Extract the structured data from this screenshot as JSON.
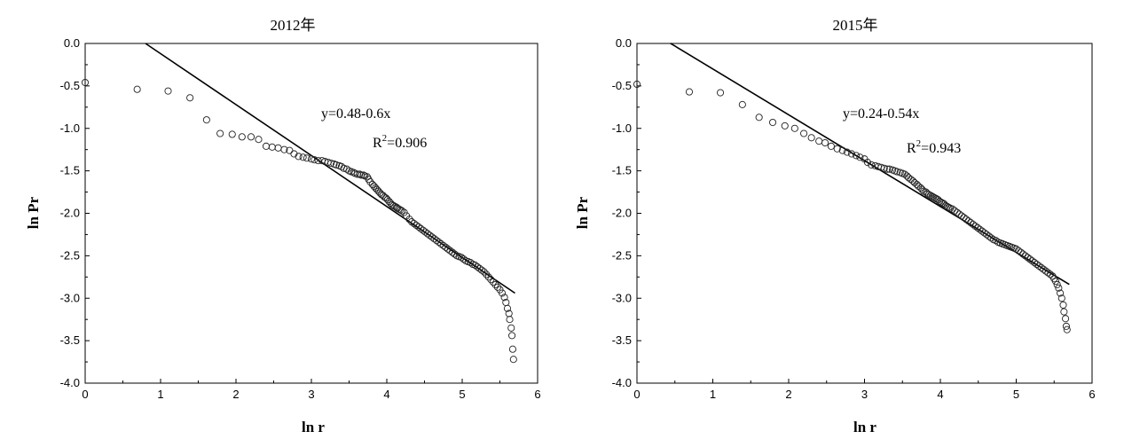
{
  "chart_data": [
    {
      "type": "scatter",
      "title": "2012年",
      "xlabel": "ln r",
      "ylabel": "ln Pr",
      "xlim": [
        0,
        6
      ],
      "ylim": [
        -4.0,
        0.0
      ],
      "xticks": [
        "0",
        "1",
        "2",
        "3",
        "4",
        "5",
        "6"
      ],
      "yticks": [
        "0.0",
        "-0.5",
        "-1.0",
        "-1.5",
        "-2.0",
        "-2.5",
        "-3.0",
        "-3.5",
        "-4.0"
      ],
      "annotation": {
        "equation": "y=0.48-0.6x",
        "r2_prefix": "R",
        "r2_sup": "2",
        "r2_value": "=0.906"
      },
      "fit": {
        "intercept": 0.48,
        "slope": -0.6,
        "x_range": [
          0.8,
          5.7
        ]
      },
      "points": [
        [
          0,
          -0.46
        ],
        [
          0.69,
          -0.54
        ],
        [
          1.1,
          -0.56
        ],
        [
          1.39,
          -0.64
        ],
        [
          1.61,
          -0.9
        ],
        [
          1.79,
          -1.06
        ],
        [
          1.95,
          -1.07
        ],
        [
          2.08,
          -1.1
        ],
        [
          2.2,
          -1.1
        ],
        [
          2.3,
          -1.13
        ],
        [
          2.4,
          -1.21
        ],
        [
          2.48,
          -1.22
        ],
        [
          2.56,
          -1.23
        ],
        [
          2.64,
          -1.25
        ],
        [
          2.71,
          -1.26
        ],
        [
          2.77,
          -1.3
        ],
        [
          2.83,
          -1.33
        ],
        [
          2.89,
          -1.34
        ],
        [
          2.94,
          -1.35
        ],
        [
          3.0,
          -1.36
        ],
        [
          3.04,
          -1.37
        ],
        [
          3.09,
          -1.38
        ],
        [
          3.14,
          -1.38
        ],
        [
          3.18,
          -1.39
        ],
        [
          3.22,
          -1.4
        ],
        [
          3.26,
          -1.41
        ],
        [
          3.3,
          -1.42
        ],
        [
          3.33,
          -1.43
        ],
        [
          3.37,
          -1.44
        ],
        [
          3.4,
          -1.45
        ],
        [
          3.43,
          -1.47
        ],
        [
          3.47,
          -1.48
        ],
        [
          3.5,
          -1.5
        ],
        [
          3.53,
          -1.51
        ],
        [
          3.56,
          -1.52
        ],
        [
          3.58,
          -1.53
        ],
        [
          3.61,
          -1.54
        ],
        [
          3.64,
          -1.54
        ],
        [
          3.66,
          -1.55
        ],
        [
          3.69,
          -1.55
        ],
        [
          3.71,
          -1.56
        ],
        [
          3.74,
          -1.57
        ],
        [
          3.76,
          -1.6
        ],
        [
          3.78,
          -1.63
        ],
        [
          3.81,
          -1.66
        ],
        [
          3.83,
          -1.68
        ],
        [
          3.85,
          -1.7
        ],
        [
          3.87,
          -1.72
        ],
        [
          3.89,
          -1.74
        ],
        [
          3.91,
          -1.76
        ],
        [
          3.93,
          -1.78
        ],
        [
          3.95,
          -1.79
        ],
        [
          3.97,
          -1.81
        ],
        [
          3.99,
          -1.82
        ],
        [
          4.01,
          -1.84
        ],
        [
          4.03,
          -1.86
        ],
        [
          4.05,
          -1.88
        ],
        [
          4.07,
          -1.9
        ],
        [
          4.09,
          -1.91
        ],
        [
          4.11,
          -1.92
        ],
        [
          4.13,
          -1.93
        ],
        [
          4.14,
          -1.94
        ],
        [
          4.16,
          -1.95
        ],
        [
          4.18,
          -1.96
        ],
        [
          4.2,
          -1.97
        ],
        [
          4.23,
          -1.99
        ],
        [
          4.26,
          -2.03
        ],
        [
          4.3,
          -2.07
        ],
        [
          4.33,
          -2.1
        ],
        [
          4.36,
          -2.12
        ],
        [
          4.39,
          -2.14
        ],
        [
          4.42,
          -2.16
        ],
        [
          4.45,
          -2.18
        ],
        [
          4.48,
          -2.2
        ],
        [
          4.51,
          -2.22
        ],
        [
          4.54,
          -2.24
        ],
        [
          4.57,
          -2.26
        ],
        [
          4.6,
          -2.28
        ],
        [
          4.63,
          -2.3
        ],
        [
          4.66,
          -2.32
        ],
        [
          4.69,
          -2.34
        ],
        [
          4.72,
          -2.36
        ],
        [
          4.75,
          -2.38
        ],
        [
          4.78,
          -2.4
        ],
        [
          4.81,
          -2.42
        ],
        [
          4.84,
          -2.44
        ],
        [
          4.87,
          -2.46
        ],
        [
          4.9,
          -2.48
        ],
        [
          4.93,
          -2.5
        ],
        [
          4.96,
          -2.51
        ],
        [
          4.99,
          -2.52
        ],
        [
          5.02,
          -2.54
        ],
        [
          5.05,
          -2.56
        ],
        [
          5.08,
          -2.57
        ],
        [
          5.11,
          -2.58
        ],
        [
          5.14,
          -2.6
        ],
        [
          5.17,
          -2.61
        ],
        [
          5.2,
          -2.63
        ],
        [
          5.23,
          -2.65
        ],
        [
          5.26,
          -2.67
        ],
        [
          5.29,
          -2.69
        ],
        [
          5.32,
          -2.72
        ],
        [
          5.35,
          -2.75
        ],
        [
          5.38,
          -2.78
        ],
        [
          5.41,
          -2.81
        ],
        [
          5.44,
          -2.84
        ],
        [
          5.47,
          -2.87
        ],
        [
          5.5,
          -2.9
        ],
        [
          5.53,
          -2.94
        ],
        [
          5.56,
          -2.99
        ],
        [
          5.58,
          -3.05
        ],
        [
          5.6,
          -3.12
        ],
        [
          5.62,
          -3.18
        ],
        [
          5.63,
          -3.25
        ],
        [
          5.65,
          -3.35
        ],
        [
          5.66,
          -3.44
        ],
        [
          5.67,
          -3.6
        ],
        [
          5.68,
          -3.72
        ]
      ]
    },
    {
      "type": "scatter",
      "title": "2015年",
      "xlabel": "ln r",
      "ylabel": "ln Pr",
      "xlim": [
        0,
        6
      ],
      "ylim": [
        -4.0,
        0.0
      ],
      "xticks": [
        "0",
        "1",
        "2",
        "3",
        "4",
        "5",
        "6"
      ],
      "yticks": [
        "0.0",
        "-0.5",
        "-1.0",
        "-1.5",
        "-2.0",
        "-2.5",
        "-3.0",
        "-3.5",
        "-4.0"
      ],
      "annotation": {
        "equation": "y=0.24-0.54x",
        "r2_prefix": "R",
        "r2_sup": "2",
        "r2_value": "=0.943"
      },
      "fit": {
        "intercept": 0.24,
        "slope": -0.54,
        "x_range": [
          0.44,
          5.7
        ]
      },
      "points": [
        [
          0,
          -0.48
        ],
        [
          0.69,
          -0.57
        ],
        [
          1.1,
          -0.58
        ],
        [
          1.39,
          -0.72
        ],
        [
          1.61,
          -0.87
        ],
        [
          1.79,
          -0.93
        ],
        [
          1.95,
          -0.97
        ],
        [
          2.08,
          -1.0
        ],
        [
          2.2,
          -1.06
        ],
        [
          2.3,
          -1.11
        ],
        [
          2.4,
          -1.15
        ],
        [
          2.48,
          -1.17
        ],
        [
          2.56,
          -1.21
        ],
        [
          2.64,
          -1.24
        ],
        [
          2.71,
          -1.26
        ],
        [
          2.77,
          -1.28
        ],
        [
          2.83,
          -1.3
        ],
        [
          2.89,
          -1.32
        ],
        [
          2.94,
          -1.34
        ],
        [
          3.0,
          -1.36
        ],
        [
          3.04,
          -1.4
        ],
        [
          3.09,
          -1.43
        ],
        [
          3.14,
          -1.44
        ],
        [
          3.18,
          -1.45
        ],
        [
          3.22,
          -1.46
        ],
        [
          3.26,
          -1.47
        ],
        [
          3.3,
          -1.48
        ],
        [
          3.33,
          -1.48
        ],
        [
          3.37,
          -1.49
        ],
        [
          3.4,
          -1.5
        ],
        [
          3.43,
          -1.51
        ],
        [
          3.47,
          -1.52
        ],
        [
          3.5,
          -1.53
        ],
        [
          3.53,
          -1.54
        ],
        [
          3.56,
          -1.56
        ],
        [
          3.58,
          -1.58
        ],
        [
          3.61,
          -1.6
        ],
        [
          3.64,
          -1.62
        ],
        [
          3.66,
          -1.64
        ],
        [
          3.69,
          -1.66
        ],
        [
          3.71,
          -1.68
        ],
        [
          3.74,
          -1.7
        ],
        [
          3.76,
          -1.72
        ],
        [
          3.78,
          -1.74
        ],
        [
          3.81,
          -1.75
        ],
        [
          3.83,
          -1.77
        ],
        [
          3.85,
          -1.78
        ],
        [
          3.87,
          -1.79
        ],
        [
          3.89,
          -1.8
        ],
        [
          3.91,
          -1.81
        ],
        [
          3.93,
          -1.82
        ],
        [
          3.95,
          -1.83
        ],
        [
          3.97,
          -1.84
        ],
        [
          3.99,
          -1.86
        ],
        [
          4.01,
          -1.87
        ],
        [
          4.03,
          -1.88
        ],
        [
          4.05,
          -1.89
        ],
        [
          4.07,
          -1.91
        ],
        [
          4.09,
          -1.92
        ],
        [
          4.11,
          -1.93
        ],
        [
          4.13,
          -1.94
        ],
        [
          4.16,
          -1.95
        ],
        [
          4.19,
          -1.97
        ],
        [
          4.22,
          -1.99
        ],
        [
          4.25,
          -2.01
        ],
        [
          4.28,
          -2.03
        ],
        [
          4.31,
          -2.05
        ],
        [
          4.34,
          -2.07
        ],
        [
          4.37,
          -2.09
        ],
        [
          4.4,
          -2.11
        ],
        [
          4.43,
          -2.13
        ],
        [
          4.46,
          -2.15
        ],
        [
          4.49,
          -2.17
        ],
        [
          4.52,
          -2.19
        ],
        [
          4.55,
          -2.21
        ],
        [
          4.58,
          -2.23
        ],
        [
          4.61,
          -2.25
        ],
        [
          4.64,
          -2.27
        ],
        [
          4.67,
          -2.29
        ],
        [
          4.7,
          -2.31
        ],
        [
          4.73,
          -2.32
        ],
        [
          4.76,
          -2.34
        ],
        [
          4.79,
          -2.35
        ],
        [
          4.82,
          -2.36
        ],
        [
          4.85,
          -2.37
        ],
        [
          4.88,
          -2.38
        ],
        [
          4.91,
          -2.39
        ],
        [
          4.94,
          -2.4
        ],
        [
          4.97,
          -2.41
        ],
        [
          5.0,
          -2.42
        ],
        [
          5.03,
          -2.44
        ],
        [
          5.06,
          -2.46
        ],
        [
          5.09,
          -2.48
        ],
        [
          5.12,
          -2.5
        ],
        [
          5.15,
          -2.52
        ],
        [
          5.18,
          -2.54
        ],
        [
          5.21,
          -2.56
        ],
        [
          5.24,
          -2.58
        ],
        [
          5.27,
          -2.6
        ],
        [
          5.3,
          -2.62
        ],
        [
          5.33,
          -2.64
        ],
        [
          5.36,
          -2.66
        ],
        [
          5.39,
          -2.68
        ],
        [
          5.42,
          -2.7
        ],
        [
          5.45,
          -2.72
        ],
        [
          5.48,
          -2.74
        ],
        [
          5.5,
          -2.77
        ],
        [
          5.52,
          -2.8
        ],
        [
          5.54,
          -2.84
        ],
        [
          5.56,
          -2.88
        ],
        [
          5.58,
          -2.94
        ],
        [
          5.6,
          -3.0
        ],
        [
          5.62,
          -3.08
        ],
        [
          5.63,
          -3.16
        ],
        [
          5.65,
          -3.24
        ],
        [
          5.66,
          -3.33
        ],
        [
          5.67,
          -3.37
        ]
      ]
    }
  ]
}
